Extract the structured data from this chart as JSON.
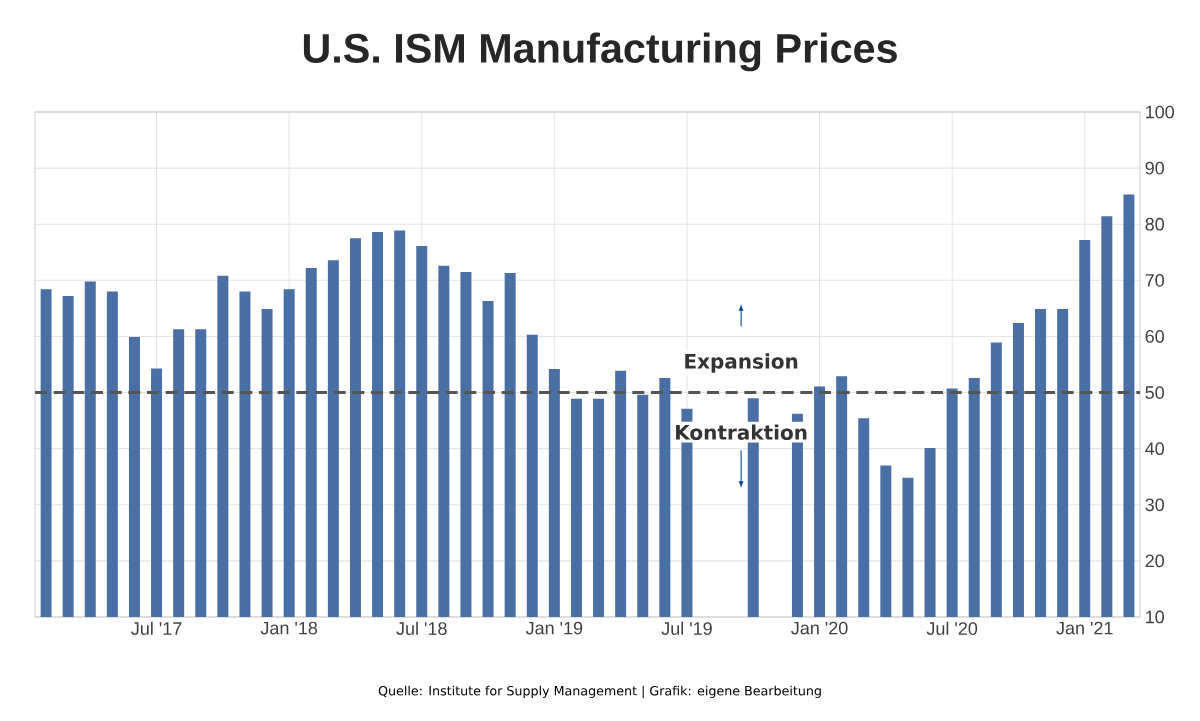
{
  "chart_data": {
    "type": "bar",
    "title": "U.S. ISM Manufacturing Prices",
    "categories": [
      null,
      null,
      null,
      null,
      null,
      "Jul '17",
      null,
      null,
      null,
      null,
      null,
      "Jan '18",
      null,
      null,
      null,
      null,
      null,
      "Jul '18",
      null,
      null,
      null,
      null,
      null,
      "Jan '19",
      null,
      null,
      null,
      null,
      null,
      "Jul '19",
      null,
      null,
      null,
      null,
      null,
      "Jan '20",
      null,
      null,
      null,
      null,
      null,
      "Jul '20",
      null,
      null,
      null,
      null,
      null,
      "Jan '21",
      null,
      null
    ],
    "values": [
      68.4,
      67.2,
      69.8,
      68.0,
      59.9,
      54.3,
      61.3,
      61.3,
      70.8,
      68.0,
      64.9,
      68.4,
      72.2,
      73.6,
      77.5,
      78.6,
      78.9,
      76.1,
      72.6,
      71.5,
      66.3,
      71.3,
      60.3,
      54.2,
      48.9,
      48.9,
      53.9,
      49.6,
      52.6,
      47.1,
      null,
      null,
      49.0,
      null,
      46.2,
      51.1,
      52.9,
      45.4,
      37.0,
      34.8,
      40.1,
      50.7,
      52.6,
      58.9,
      62.4,
      64.9,
      64.9,
      77.2,
      81.4,
      85.3
    ],
    "color": "#4a6fa5",
    "ylim": [
      10,
      100
    ],
    "yticks": [
      10,
      20,
      30,
      40,
      50,
      60,
      70,
      80,
      90,
      100
    ],
    "grid": true,
    "ref_lines": [
      {
        "axis": "y",
        "value": 50,
        "color": "#555555",
        "line_style": "dashed"
      }
    ],
    "annotations": [
      "Expansion",
      "Kontraktion",
      "Quelle: Institute for Supply Management | Grafik: eigene Bearbeitung"
    ]
  }
}
